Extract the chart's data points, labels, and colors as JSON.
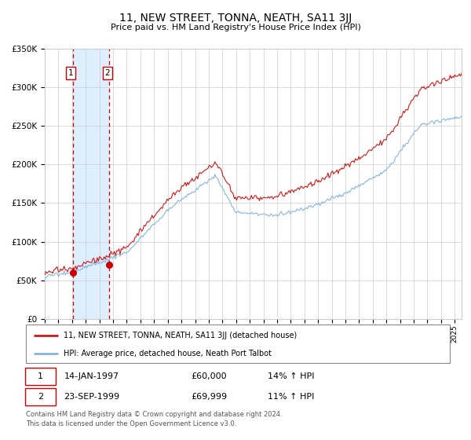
{
  "title": "11, NEW STREET, TONNA, NEATH, SA11 3JJ",
  "subtitle": "Price paid vs. HM Land Registry's House Price Index (HPI)",
  "legend_line1": "11, NEW STREET, TONNA, NEATH, SA11 3JJ (detached house)",
  "legend_line2": "HPI: Average price, detached house, Neath Port Talbot",
  "sale1_date": "14-JAN-1997",
  "sale1_price": "£60,000",
  "sale1_hpi": "14% ↑ HPI",
  "sale2_date": "23-SEP-1999",
  "sale2_price": "£69,999",
  "sale2_hpi": "11% ↑ HPI",
  "footnote": "Contains HM Land Registry data © Crown copyright and database right 2024.\nThis data is licensed under the Open Government Licence v3.0.",
  "sale1_year": 1997.04,
  "sale1_value": 60000,
  "sale2_year": 1999.73,
  "sale2_value": 69999,
  "ylim": [
    0,
    350000
  ],
  "xlim_start": 1995.0,
  "xlim_end": 2025.5,
  "red_color": "#cc0000",
  "blue_color": "#7aadda",
  "shade_color": "#ddeeff",
  "grid_color": "#cccccc",
  "bg_color": "#ffffff"
}
